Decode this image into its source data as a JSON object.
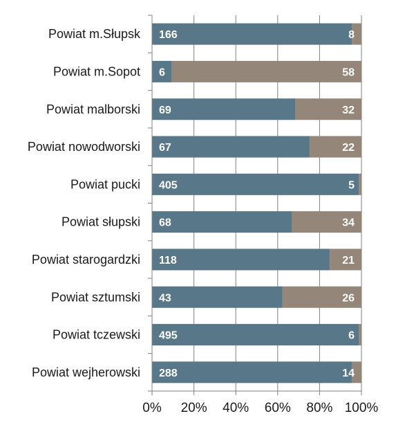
{
  "chart_data": {
    "type": "bar",
    "orientation": "horizontal",
    "stacking": "percent",
    "categories": [
      "Powiat m.Słupsk",
      "Powiat m.Sopot",
      "Powiat malborski",
      "Powiat nowodworski",
      "Powiat pucki",
      "Powiat słupski",
      "Powiat starogardzki",
      "Powiat sztumski",
      "Powiat tczewski",
      "Powiat wejherowski"
    ],
    "series": [
      {
        "values": [
          166,
          6,
          69,
          67,
          405,
          68,
          118,
          43,
          495,
          288
        ],
        "color": "#587889"
      },
      {
        "values": [
          8,
          58,
          32,
          22,
          5,
          34,
          21,
          26,
          6,
          14
        ],
        "color": "#948679"
      }
    ],
    "x_ticks": [
      "0%",
      "20%",
      "40%",
      "60%",
      "80%",
      "100%"
    ],
    "xlim": [
      0,
      100
    ],
    "grid": "vertical",
    "legend": "none",
    "title": "",
    "xlabel": "",
    "ylabel": ""
  }
}
